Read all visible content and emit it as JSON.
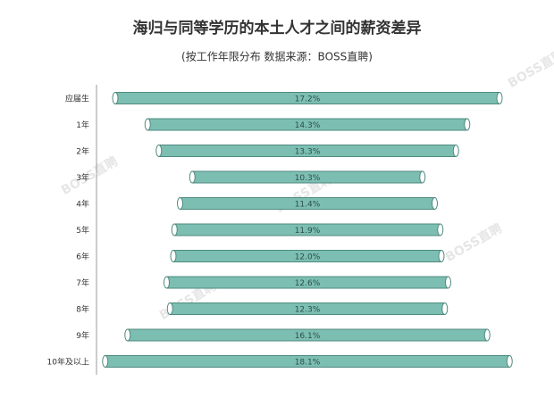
{
  "chart_data": {
    "type": "bar",
    "title": "海归与同等学历的本土人才之间的薪资差异",
    "subtitle": "(按工作年限分布  数据来源：BOSS直聘)",
    "watermark": "BOSS直聘",
    "categories": [
      "应届生",
      "1年",
      "2年",
      "3年",
      "4年",
      "5年",
      "6年",
      "7年",
      "8年",
      "9年",
      "10年及以上"
    ],
    "values": [
      17.2,
      14.3,
      13.3,
      10.3,
      11.4,
      11.9,
      12,
      12.6,
      12.3,
      16.1,
      18.1
    ],
    "value_labels": [
      "17.2%",
      "14.3%",
      "13.3%",
      "10.3%",
      "11.4%",
      "11.9%",
      "12.0%",
      "12.6%",
      "12.3%",
      "16.1%",
      "18.1%"
    ],
    "color": "#7cbfb2"
  }
}
